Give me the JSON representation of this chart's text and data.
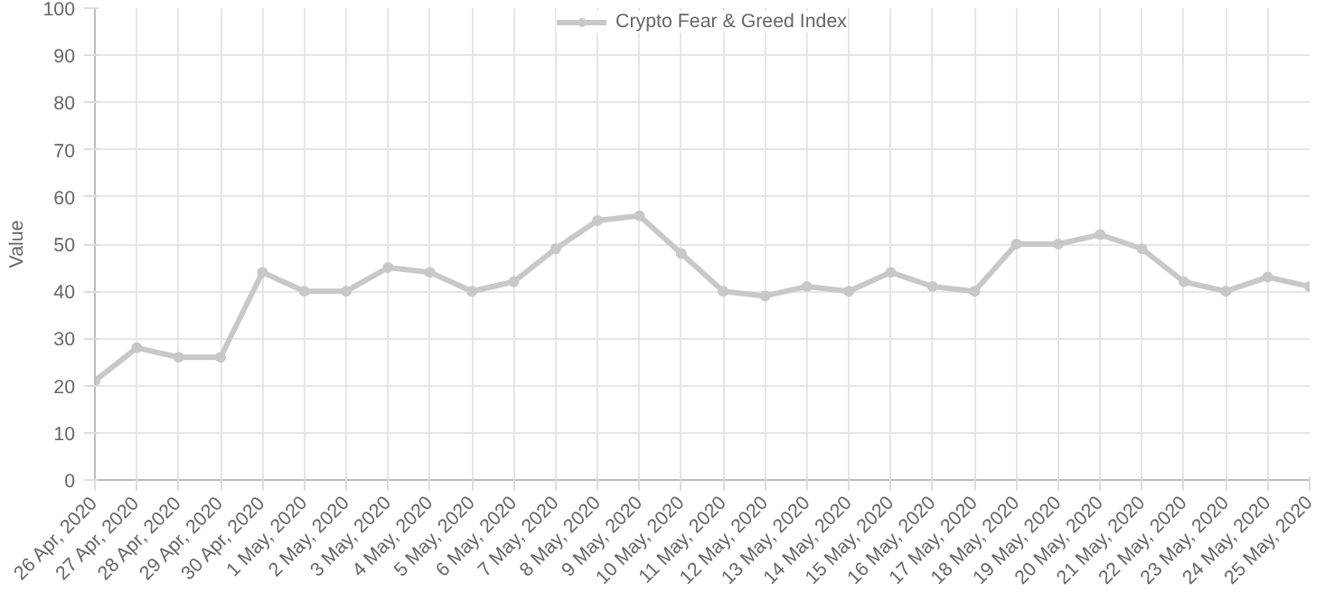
{
  "chart_data": {
    "type": "line",
    "ylabel": "Value",
    "categories": [
      "26 Apr, 2020",
      "27 Apr, 2020",
      "28 Apr, 2020",
      "29 Apr, 2020",
      "30 Apr, 2020",
      "1 May, 2020",
      "2 May, 2020",
      "3 May, 2020",
      "4 May, 2020",
      "5 May, 2020",
      "6 May, 2020",
      "7 May, 2020",
      "8 May, 2020",
      "9 May, 2020",
      "10 May, 2020",
      "11 May, 2020",
      "12 May, 2020",
      "13 May, 2020",
      "14 May, 2020",
      "15 May, 2020",
      "16 May, 2020",
      "17 May, 2020",
      "18 May, 2020",
      "19 May, 2020",
      "20 May, 2020",
      "21 May, 2020",
      "22 May, 2020",
      "23 May, 2020",
      "24 May, 2020",
      "25 May, 2020"
    ],
    "series": [
      {
        "name": "Crypto Fear & Greed Index",
        "color": "#c8c8c8",
        "values": [
          21,
          28,
          26,
          26,
          44,
          40,
          40,
          45,
          44,
          40,
          42,
          49,
          55,
          56,
          48,
          40,
          39,
          41,
          40,
          44,
          41,
          40,
          50,
          50,
          52,
          49,
          42,
          40,
          43,
          41
        ]
      }
    ],
    "ylim": [
      0,
      100
    ],
    "yticks": [
      0,
      10,
      20,
      30,
      40,
      50,
      60,
      70,
      80,
      90,
      100
    ],
    "grid": true,
    "legend": "top",
    "marker": "circle",
    "line_style": "solid"
  }
}
